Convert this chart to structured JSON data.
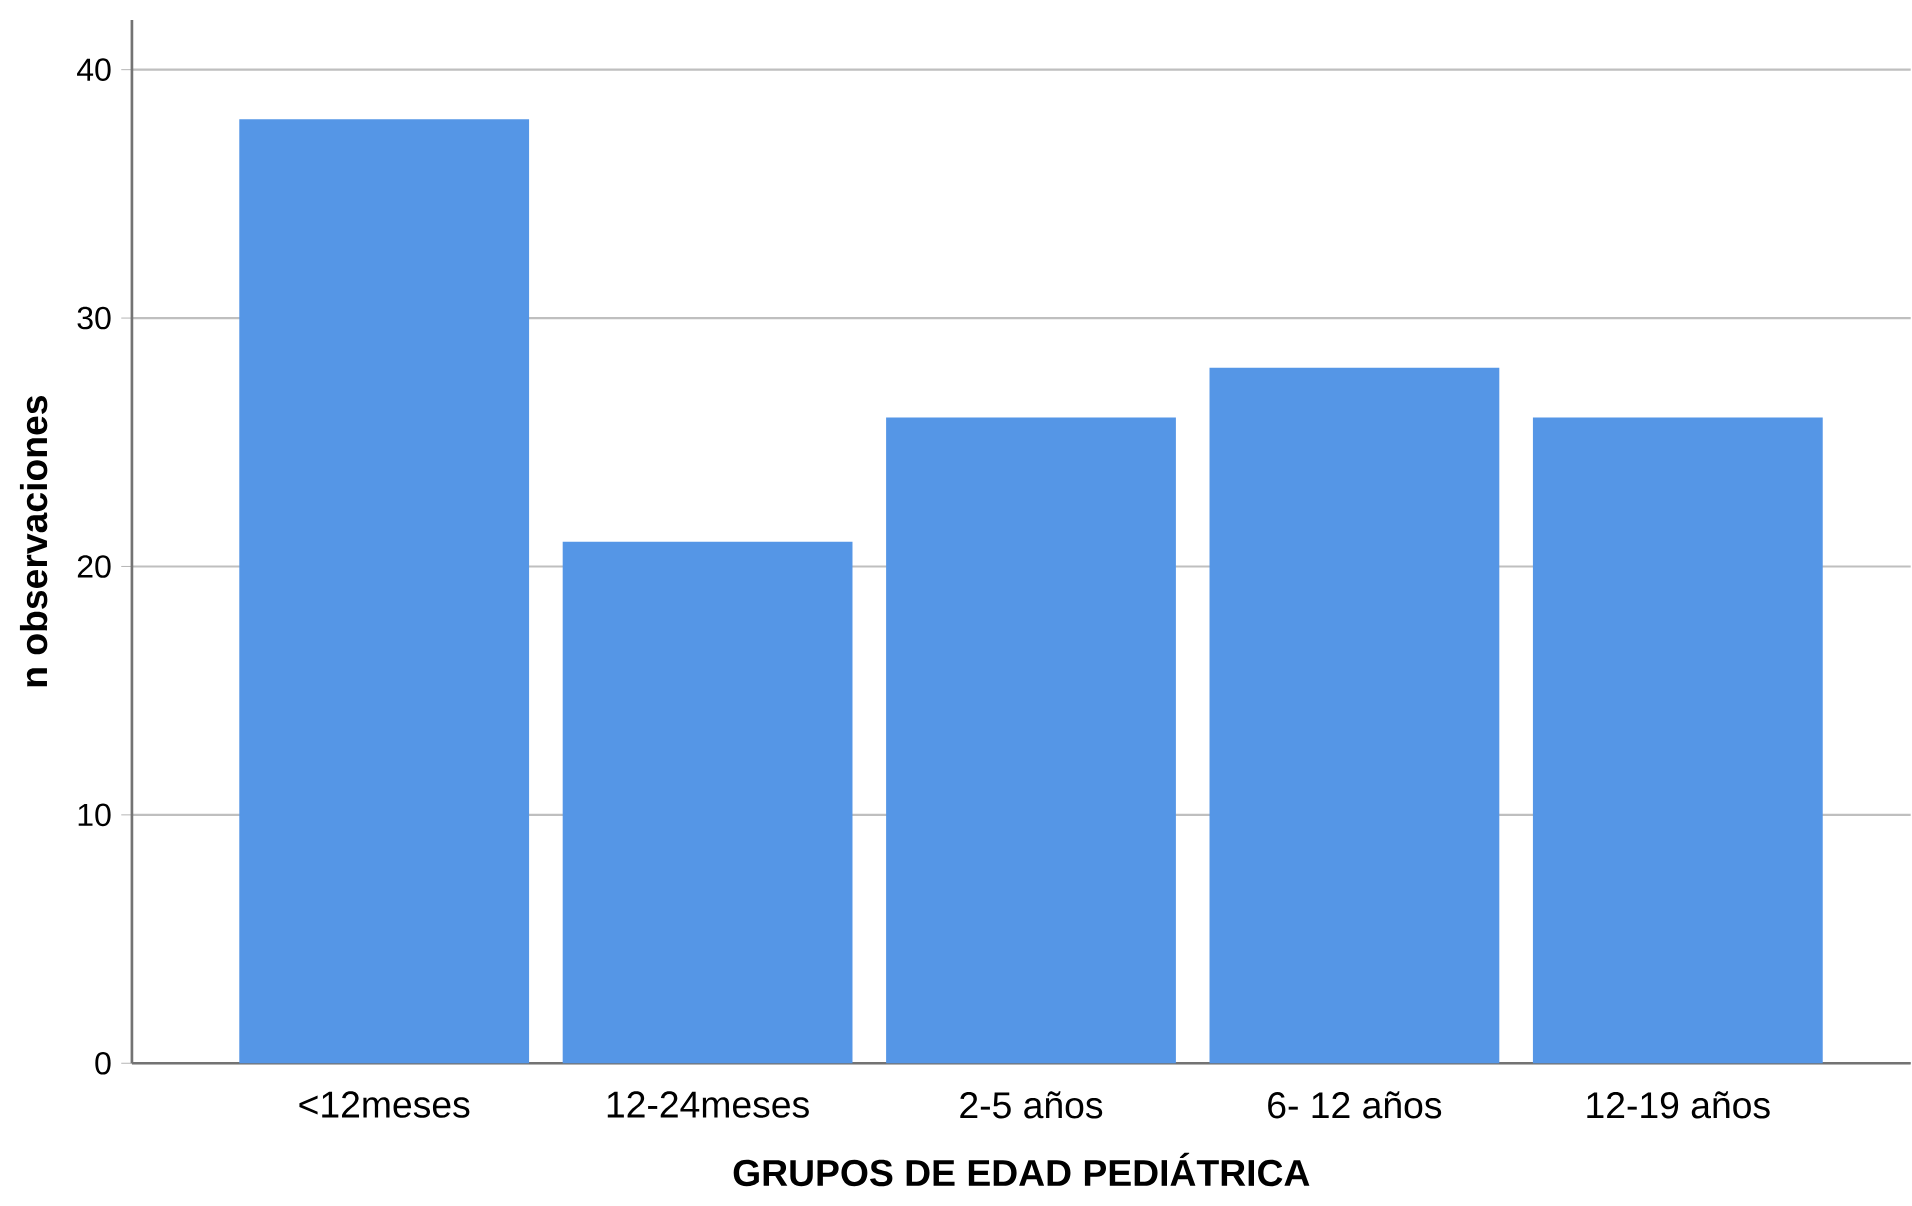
{
  "chart_data": {
    "type": "bar",
    "xlabel": "GRUPOS DE EDAD PEDIÁTRICA",
    "ylabel": "n observaciones",
    "categories": [
      "<12meses",
      "12-24meses",
      "2-5 años",
      "6- 12 años",
      "12-19 años"
    ],
    "values": [
      38,
      21,
      26,
      28,
      26
    ],
    "color": "#5596e6",
    "ylim": [
      0,
      42
    ],
    "yticks": [
      0,
      10,
      20,
      30,
      40
    ],
    "grid": "y"
  }
}
